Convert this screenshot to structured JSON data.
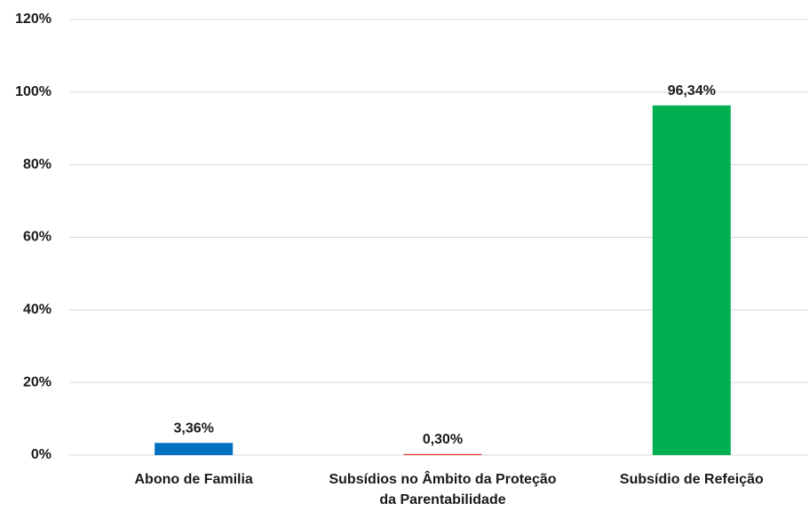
{
  "chart_data": {
    "type": "bar",
    "categories": [
      "Abono de Familia",
      "Subsídios no Âmbito da Proteção da Parentabilidade",
      "Subsídio de Refeição"
    ],
    "values": [
      3.36,
      0.3,
      96.34
    ],
    "value_labels": [
      "3,36%",
      "0,30%",
      "96,34%"
    ],
    "colors": [
      "#0070c0",
      "#e03c31",
      "#00b050"
    ],
    "ylim": [
      0,
      120
    ],
    "yticks": [
      {
        "value": 0,
        "label": "0%"
      },
      {
        "value": 20,
        "label": "20%"
      },
      {
        "value": 40,
        "label": "40%"
      },
      {
        "value": 60,
        "label": "60%"
      },
      {
        "value": 80,
        "label": "80%"
      },
      {
        "value": 100,
        "label": "100%"
      },
      {
        "value": 120,
        "label": "120%"
      }
    ],
    "grid": true
  }
}
